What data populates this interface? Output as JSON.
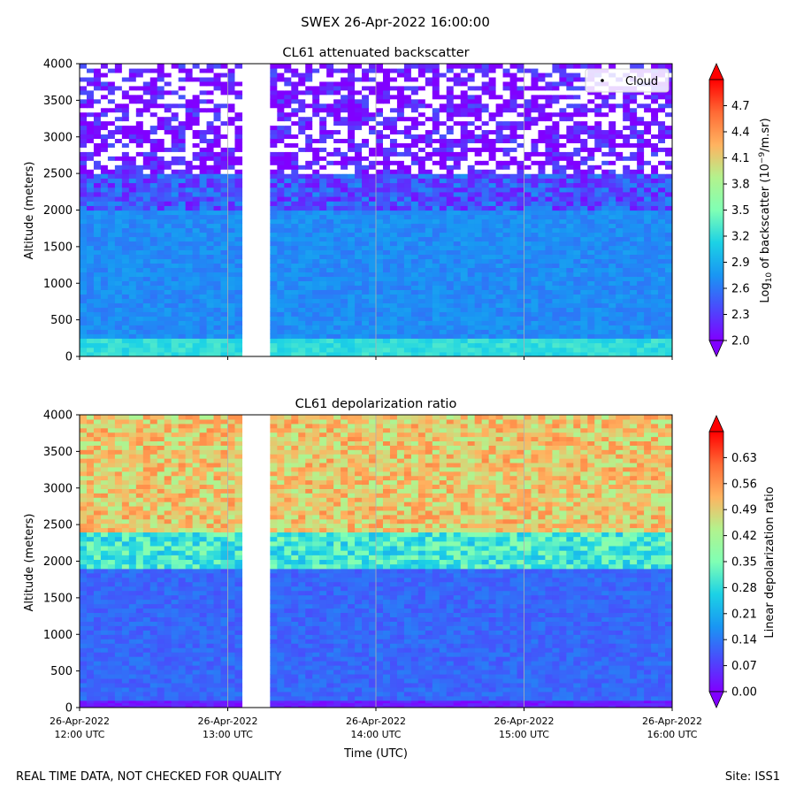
{
  "figure": {
    "title": "SWEX 26-Apr-2022 16:00:00",
    "footer_left": "REAL TIME DATA, NOT CHECKED FOR QUALITY",
    "footer_right": "Site: ISS1"
  },
  "chart_data": [
    {
      "type": "heatmap",
      "title": "CL61 attenuated backscatter",
      "xlabel": "",
      "ylabel": "Altitude (meters)",
      "colorbar_label": "Log10 of backscatter (10^-9/m.sr)",
      "colorbar_label_parts": {
        "pre": "Log",
        "sub": "10",
        "mid": " of backscatter (10",
        "sup": "−9",
        "post": "/m.sr)"
      },
      "colorbar_ticks": [
        "2.0",
        "2.3",
        "2.6",
        "2.9",
        "3.2",
        "3.5",
        "3.8",
        "4.1",
        "4.4",
        "4.7"
      ],
      "clim": [
        2.0,
        5.0
      ],
      "colormap": "rainbow",
      "x_range": [
        "26-Apr-2022 12:00",
        "26-Apr-2022 16:00"
      ],
      "ylim": [
        0,
        4000
      ],
      "yticks": [
        "0",
        "500",
        "1000",
        "1500",
        "2000",
        "2500",
        "3000",
        "3500",
        "4000"
      ],
      "data_gap": [
        "13:07",
        "13:16"
      ],
      "legend": {
        "entries": [
          "Cloud"
        ],
        "position": "upper right"
      },
      "grid": "vertical only",
      "layers": [
        {
          "altitude_range": [
            0,
            250
          ],
          "approx_value": 3.2
        },
        {
          "altitude_range": [
            250,
            2000
          ],
          "approx_value": 2.7
        },
        {
          "altitude_range": [
            2000,
            2500
          ],
          "approx_value": 2.4
        },
        {
          "altitude_range": [
            2500,
            4000
          ],
          "approx_value": 2.1
        }
      ]
    },
    {
      "type": "heatmap",
      "title": "CL61 depolarization ratio",
      "xlabel": "Time (UTC)",
      "ylabel": "Altitude (meters)",
      "colorbar_label": "Linear depolarization ratio",
      "colorbar_ticks": [
        "0.00",
        "0.07",
        "0.14",
        "0.21",
        "0.28",
        "0.35",
        "0.42",
        "0.49",
        "0.56",
        "0.63"
      ],
      "clim": [
        0.0,
        0.7
      ],
      "colormap": "rainbow",
      "x_range": [
        "26-Apr-2022 12:00",
        "26-Apr-2022 16:00"
      ],
      "xticks": [
        {
          "date": "26-Apr-2022",
          "time": "12:00 UTC"
        },
        {
          "date": "26-Apr-2022",
          "time": "13:00 UTC"
        },
        {
          "date": "26-Apr-2022",
          "time": "14:00 UTC"
        },
        {
          "date": "26-Apr-2022",
          "time": "15:00 UTC"
        },
        {
          "date": "26-Apr-2022",
          "time": "16:00 UTC"
        }
      ],
      "ylim": [
        0,
        4000
      ],
      "yticks": [
        "0",
        "500",
        "1000",
        "1500",
        "2000",
        "2500",
        "3000",
        "3500",
        "4000"
      ],
      "data_gap": [
        "13:07",
        "13:16"
      ],
      "grid": "vertical only",
      "layers": [
        {
          "altitude_range": [
            0,
            100
          ],
          "approx_value": 0.03
        },
        {
          "altitude_range": [
            100,
            1900
          ],
          "approx_value": 0.12
        },
        {
          "altitude_range": [
            1900,
            2400
          ],
          "approx_value": 0.3
        },
        {
          "altitude_range": [
            2400,
            4000
          ],
          "approx_value": 0.5
        }
      ]
    }
  ]
}
